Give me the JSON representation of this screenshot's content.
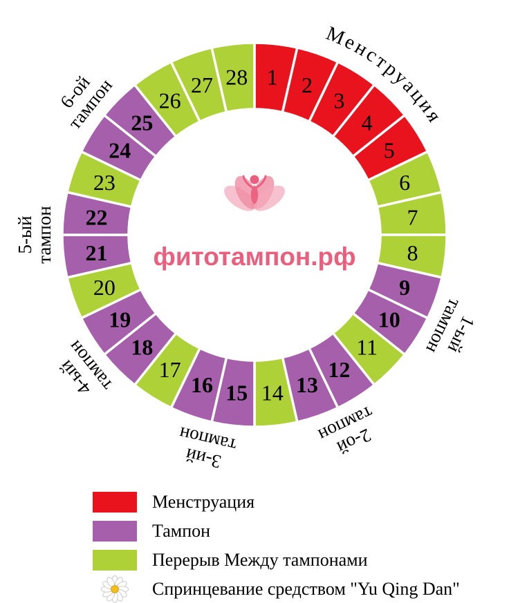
{
  "wheel": {
    "center": {
      "brand": "фитотампон.рф",
      "brand_color": "#e8607e"
    },
    "day_types": {
      "menstruation": {
        "color": "#e8131d",
        "label": "Менструация",
        "bold_numbers": false
      },
      "tampon": {
        "color": "#a55fab",
        "label": "Тампон",
        "bold_numbers": true
      },
      "break": {
        "color": "#afd138",
        "label": "Перерыв Между тампонами",
        "bold_numbers": false
      }
    },
    "days": [
      {
        "day": 1,
        "type": "menstruation"
      },
      {
        "day": 2,
        "type": "menstruation"
      },
      {
        "day": 3,
        "type": "menstruation"
      },
      {
        "day": 4,
        "type": "menstruation"
      },
      {
        "day": 5,
        "type": "menstruation"
      },
      {
        "day": 6,
        "type": "break"
      },
      {
        "day": 7,
        "type": "break"
      },
      {
        "day": 8,
        "type": "break"
      },
      {
        "day": 9,
        "type": "tampon"
      },
      {
        "day": 10,
        "type": "tampon"
      },
      {
        "day": 11,
        "type": "break"
      },
      {
        "day": 12,
        "type": "tampon"
      },
      {
        "day": 13,
        "type": "tampon"
      },
      {
        "day": 14,
        "type": "break"
      },
      {
        "day": 15,
        "type": "tampon"
      },
      {
        "day": 16,
        "type": "tampon"
      },
      {
        "day": 17,
        "type": "break"
      },
      {
        "day": 18,
        "type": "tampon"
      },
      {
        "day": 19,
        "type": "tampon"
      },
      {
        "day": 20,
        "type": "break"
      },
      {
        "day": 21,
        "type": "tampon"
      },
      {
        "day": 22,
        "type": "tampon"
      },
      {
        "day": 23,
        "type": "break"
      },
      {
        "day": 24,
        "type": "tampon"
      },
      {
        "day": 25,
        "type": "tampon"
      },
      {
        "day": 26,
        "type": "break"
      },
      {
        "day": 27,
        "type": "break"
      },
      {
        "day": 28,
        "type": "break"
      }
    ],
    "outer_labels": {
      "menstruation": "Менструация",
      "tampon_labels": [
        {
          "line1": "1-ый",
          "line2": "тампон",
          "after_day": 9
        },
        {
          "line1": "2-ой",
          "line2": "тампон",
          "after_day": 12
        },
        {
          "line1": "3-ий",
          "line2": "тампон",
          "after_day": 15
        },
        {
          "line1": "4-ый",
          "line2": "тампон",
          "after_day": 18
        },
        {
          "line1": "5-ый",
          "line2": "тампон",
          "after_day": 21
        },
        {
          "line1": "6-ой",
          "line2": "тампон",
          "after_day": 24
        }
      ]
    }
  },
  "legend": {
    "items": [
      {
        "swatch": "menstruation",
        "label": "Менструация"
      },
      {
        "swatch": "tampon",
        "label": "Тампон"
      },
      {
        "swatch": "break",
        "label": "Перерыв Между тампонами"
      },
      {
        "swatch": "daisy",
        "label": "Спринцевание средством \"Yu Qing Dan\""
      }
    ]
  },
  "chart_data": {
    "type": "donut-cycle-wheel",
    "total_days": 28,
    "title": "фитотампон.рф",
    "segments": {
      "menstruation": [
        1,
        2,
        3,
        4,
        5
      ],
      "tampon": [
        9,
        10,
        12,
        13,
        15,
        16,
        18,
        19,
        21,
        22,
        24,
        25
      ],
      "break": [
        6,
        7,
        8,
        11,
        14,
        17,
        20,
        23,
        26,
        27,
        28
      ]
    },
    "tampon_groups": [
      [
        9,
        10
      ],
      [
        12,
        13
      ],
      [
        15,
        16
      ],
      [
        18,
        19
      ],
      [
        21,
        22
      ],
      [
        24,
        25
      ]
    ]
  }
}
